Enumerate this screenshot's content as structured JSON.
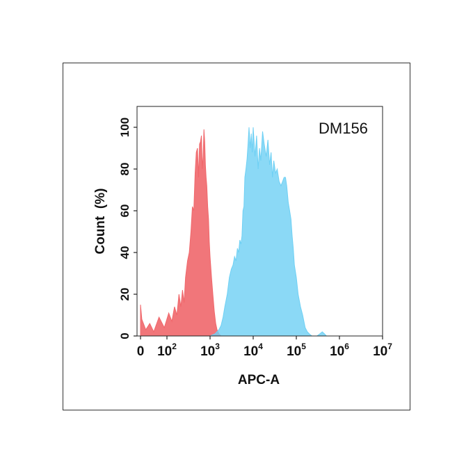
{
  "chart_data": {
    "type": "area",
    "title": "",
    "annotation": "DM156",
    "xlabel": "APC-A",
    "ylabel": "Count  (%)",
    "x_scale": "biexponential",
    "xlim": [
      0,
      10000000
    ],
    "ylim": [
      0,
      110
    ],
    "x_ticks": [
      {
        "value": 0,
        "base": "0",
        "exp": ""
      },
      {
        "value": 100,
        "base": "10",
        "exp": "2"
      },
      {
        "value": 1000,
        "base": "10",
        "exp": "3"
      },
      {
        "value": 10000,
        "base": "10",
        "exp": "4"
      },
      {
        "value": 100000,
        "base": "10",
        "exp": "5"
      },
      {
        "value": 1000000,
        "base": "10",
        "exp": "6"
      },
      {
        "value": 10000000,
        "base": "10",
        "exp": "7"
      }
    ],
    "y_ticks": [
      0,
      20,
      40,
      60,
      80,
      100
    ],
    "grid": false,
    "legend": "none",
    "series": [
      {
        "color": "#f0676b",
        "x": [
          0,
          5,
          20,
          35,
          50,
          70,
          90,
          110,
          130,
          150,
          170,
          190,
          210,
          230,
          250,
          270,
          300,
          330,
          360,
          390,
          420,
          450,
          480,
          510,
          540,
          570,
          600,
          630,
          660,
          690,
          720,
          750,
          780,
          810,
          840,
          880,
          920,
          960,
          1000,
          1080,
          1160,
          1250,
          1350,
          1450,
          1600,
          1800,
          2000
        ],
        "y": [
          15,
          8,
          3,
          6,
          2,
          9,
          4,
          11,
          7,
          14,
          10,
          20,
          14,
          22,
          16,
          28,
          36,
          40,
          50,
          62,
          60,
          78,
          88,
          90,
          76,
          92,
          93,
          96,
          80,
          86,
          99,
          93,
          82,
          76,
          72,
          62,
          56,
          45,
          38,
          28,
          20,
          12,
          6,
          3,
          1,
          0,
          0
        ]
      },
      {
        "color": "#6ed0f4",
        "x": [
          1000,
          1300,
          1600,
          1800,
          2000,
          2200,
          2500,
          2800,
          3100,
          3400,
          3700,
          4000,
          4300,
          4600,
          4900,
          5200,
          5500,
          5800,
          6100,
          6400,
          6800,
          7200,
          7600,
          8000,
          8500,
          9000,
          9500,
          10000,
          11000,
          12000,
          13000,
          14000,
          15000,
          16500,
          18000,
          20000,
          22000,
          24000,
          26000,
          28000,
          30000,
          33000,
          36000,
          40000,
          44000,
          48000,
          52000,
          56000,
          60000,
          65000,
          70000,
          75000,
          80000,
          85000,
          90000,
          100000,
          110000,
          125000,
          140000,
          160000,
          180000,
          200000,
          230000,
          260000,
          300000,
          350000,
          400000,
          450000,
          500000
        ],
        "y": [
          0,
          1,
          3,
          5,
          9,
          14,
          20,
          28,
          32,
          34,
          38,
          36,
          42,
          40,
          46,
          44,
          48,
          60,
          62,
          76,
          80,
          85,
          92,
          100,
          90,
          97,
          88,
          100,
          86,
          96,
          80,
          90,
          84,
          98,
          92,
          86,
          94,
          82,
          88,
          76,
          84,
          78,
          80,
          74,
          72,
          74,
          76,
          76,
          72,
          64,
          60,
          56,
          48,
          42,
          34,
          28,
          20,
          14,
          10,
          4,
          2,
          1,
          0,
          0,
          0,
          1,
          2,
          1,
          0
        ]
      }
    ]
  }
}
